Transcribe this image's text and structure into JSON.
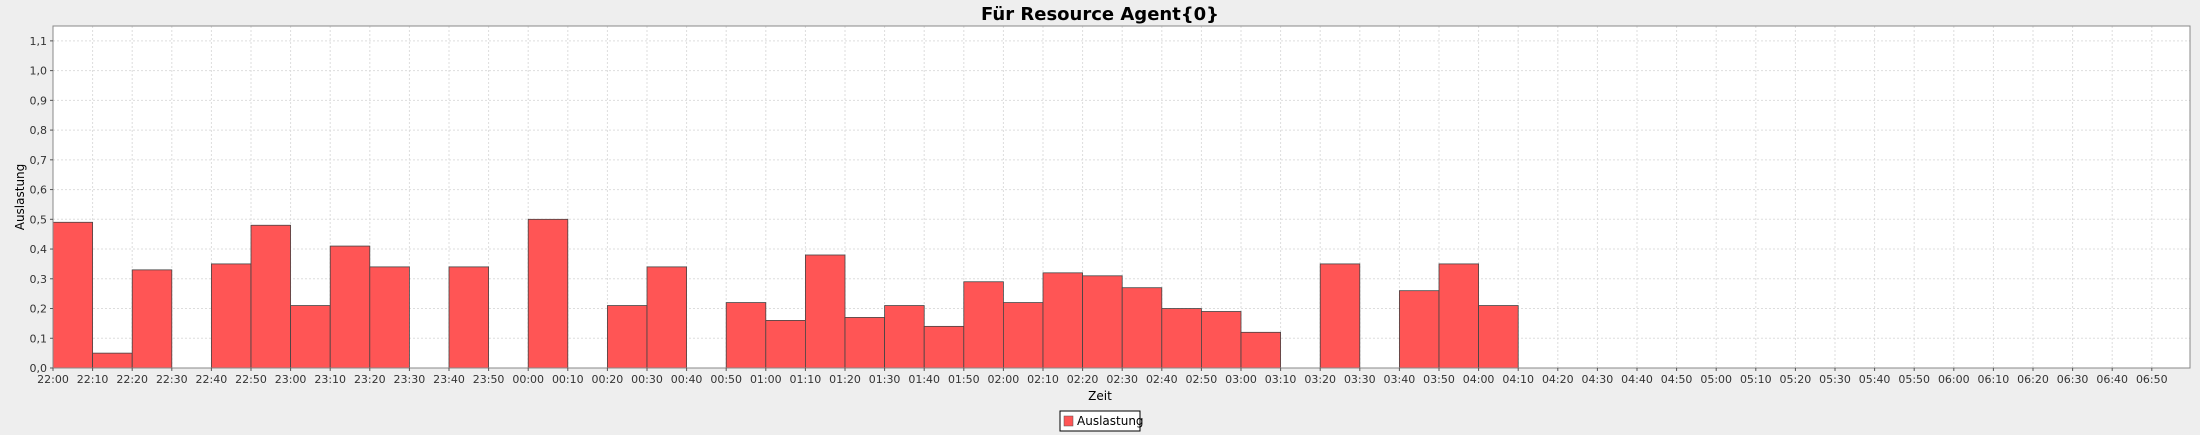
{
  "chart_data": {
    "type": "bar",
    "title": "Für Resource Agent{0}",
    "xlabel": "Zeit",
    "ylabel": "Auslastung",
    "ylim": [
      0,
      1.15
    ],
    "y_ticks": [
      "0,0",
      "0,1",
      "0,2",
      "0,3",
      "0,4",
      "0,5",
      "0,6",
      "0,7",
      "0,8",
      "0,9",
      "1,0",
      "1,1"
    ],
    "categories": [
      "22:00",
      "22:10",
      "22:20",
      "22:30",
      "22:40",
      "22:50",
      "23:00",
      "23:10",
      "23:20",
      "23:30",
      "23:40",
      "23:50",
      "00:00",
      "00:10",
      "00:20",
      "00:30",
      "00:40",
      "00:50",
      "01:00",
      "01:10",
      "01:20",
      "01:30",
      "01:40",
      "01:50",
      "02:00",
      "02:10",
      "02:20",
      "02:30",
      "02:40",
      "02:50",
      "03:00",
      "03:10",
      "03:20",
      "03:30",
      "03:40",
      "03:50",
      "04:00",
      "04:10",
      "04:20",
      "04:30",
      "04:40",
      "04:50",
      "05:00",
      "05:10",
      "05:20",
      "05:30",
      "05:40",
      "05:50",
      "06:00",
      "06:10",
      "06:20",
      "06:30",
      "06:40",
      "06:50"
    ],
    "series": [
      {
        "name": "Auslastung",
        "color": "#ff5555",
        "values": [
          0.49,
          0.05,
          0.33,
          null,
          0.35,
          0.48,
          0.21,
          0.41,
          0.34,
          null,
          0.34,
          null,
          0.5,
          null,
          0.21,
          0.34,
          null,
          0.22,
          0.16,
          0.38,
          0.17,
          0.21,
          0.14,
          0.29,
          0.22,
          0.32,
          0.31,
          0.27,
          0.2,
          0.19,
          0.12,
          null,
          0.35,
          null,
          0.26,
          0.35,
          0.21,
          null,
          null,
          null,
          null,
          null,
          null,
          null,
          null,
          null,
          null,
          null,
          null,
          null,
          null,
          null,
          null,
          null
        ]
      }
    ],
    "grid": true,
    "legend": "bottom-center"
  }
}
